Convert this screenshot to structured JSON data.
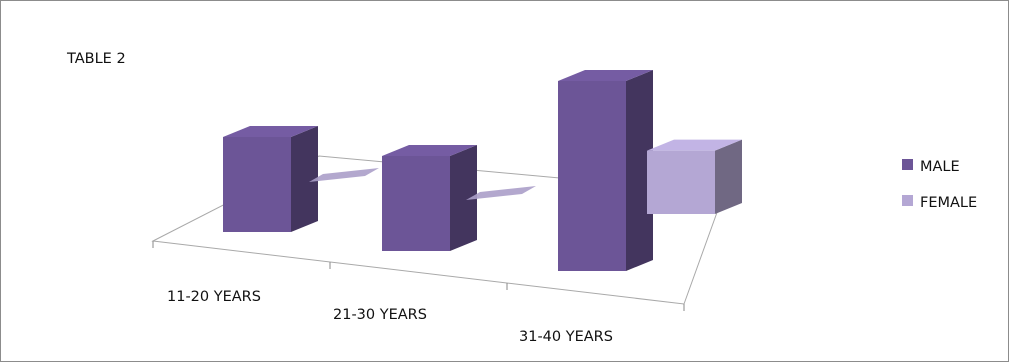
{
  "chart_data": {
    "type": "bar",
    "title": "TABLE 2",
    "categories": [
      "11-20 YEARS",
      "21-30 YEARS",
      "31-40 YEARS"
    ],
    "series": [
      {
        "name": "MALE",
        "values": [
          3,
          3,
          6
        ],
        "color": "#6c5597"
      },
      {
        "name": "FEMALE",
        "values": [
          0,
          0,
          2
        ],
        "color": "#b4a7d4"
      }
    ],
    "legend_position": "right",
    "style": "3d-clustered-column",
    "grid": false
  }
}
